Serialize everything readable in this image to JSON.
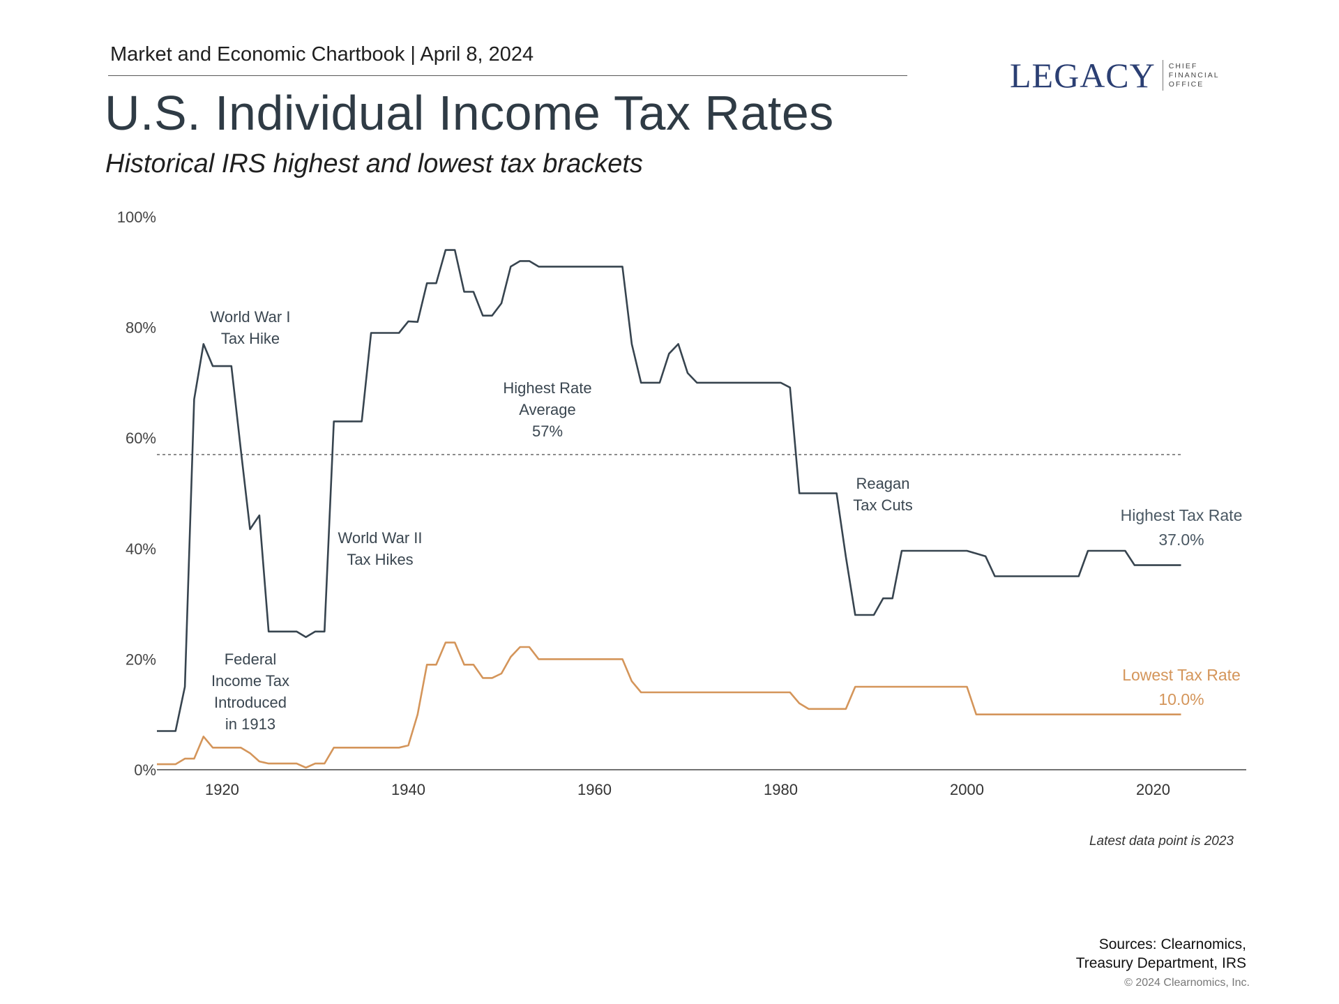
{
  "header": {
    "meta": "Market and Economic Chartbook | April 8, 2024",
    "title": "U.S. Individual Income Tax Rates",
    "subtitle": "Historical IRS highest and lowest tax brackets"
  },
  "logo": {
    "word": "LEGACY",
    "sub": [
      "CHIEF",
      "FINANCIAL",
      "OFFICE"
    ],
    "color": "#2b3f73"
  },
  "chart_data": {
    "type": "line",
    "title": "",
    "xlabel": "",
    "ylabel": "",
    "xlim": [
      1913,
      2030
    ],
    "ylim": [
      0,
      100
    ],
    "x_ticks": [
      1920,
      1940,
      1960,
      1980,
      2000,
      2020
    ],
    "y_ticks": [
      0,
      20,
      40,
      60,
      80,
      100
    ],
    "y_tick_labels": [
      "0%",
      "20%",
      "40%",
      "60%",
      "80%",
      "100%"
    ],
    "grid": false,
    "x": [
      1913,
      1914,
      1915,
      1916,
      1917,
      1918,
      1919,
      1920,
      1921,
      1922,
      1923,
      1924,
      1925,
      1926,
      1927,
      1928,
      1929,
      1930,
      1931,
      1932,
      1933,
      1934,
      1935,
      1936,
      1937,
      1938,
      1939,
      1940,
      1941,
      1942,
      1943,
      1944,
      1945,
      1946,
      1947,
      1948,
      1949,
      1950,
      1951,
      1952,
      1953,
      1954,
      1955,
      1956,
      1957,
      1958,
      1959,
      1960,
      1961,
      1962,
      1963,
      1964,
      1965,
      1966,
      1967,
      1968,
      1969,
      1970,
      1971,
      1972,
      1973,
      1974,
      1975,
      1976,
      1977,
      1978,
      1979,
      1980,
      1981,
      1982,
      1983,
      1984,
      1985,
      1986,
      1987,
      1988,
      1989,
      1990,
      1991,
      1992,
      1993,
      1994,
      1995,
      1996,
      1997,
      1998,
      1999,
      2000,
      2001,
      2002,
      2003,
      2004,
      2005,
      2006,
      2007,
      2008,
      2009,
      2010,
      2011,
      2012,
      2013,
      2014,
      2015,
      2016,
      2017,
      2018,
      2019,
      2020,
      2021,
      2022,
      2023
    ],
    "series": [
      {
        "name": "Highest Tax Rate",
        "color": "#37444f",
        "values": [
          7,
          7,
          7,
          15,
          67,
          77,
          73,
          73,
          73,
          58,
          43.5,
          46,
          25,
          25,
          25,
          25,
          24,
          25,
          25,
          63,
          63,
          63,
          63,
          79,
          79,
          79,
          79,
          81.1,
          81,
          88,
          88,
          94,
          94,
          86.45,
          86.45,
          82.13,
          82.13,
          84.36,
          91,
          92,
          92,
          91,
          91,
          91,
          91,
          91,
          91,
          91,
          91,
          91,
          91,
          77,
          70,
          70,
          70,
          75.25,
          77,
          71.75,
          70,
          70,
          70,
          70,
          70,
          70,
          70,
          70,
          70,
          70,
          69.13,
          50,
          50,
          50,
          50,
          50,
          38.5,
          28,
          28,
          28,
          31,
          31,
          39.6,
          39.6,
          39.6,
          39.6,
          39.6,
          39.6,
          39.6,
          39.6,
          39.1,
          38.6,
          35,
          35,
          35,
          35,
          35,
          35,
          35,
          35,
          35,
          35,
          39.6,
          39.6,
          39.6,
          39.6,
          39.6,
          37,
          37,
          37,
          37,
          37,
          37
        ]
      },
      {
        "name": "Lowest Tax Rate",
        "color": "#d4955a",
        "values": [
          1,
          1,
          1,
          2,
          2,
          6,
          4,
          4,
          4,
          4,
          3,
          1.5,
          1.125,
          1.125,
          1.125,
          1.125,
          0.375,
          1.125,
          1.125,
          4,
          4,
          4,
          4,
          4,
          4,
          4,
          4,
          4.4,
          10,
          19,
          19,
          23,
          23,
          19,
          19,
          16.6,
          16.6,
          17.4,
          20.4,
          22.2,
          22.2,
          20,
          20,
          20,
          20,
          20,
          20,
          20,
          20,
          20,
          20,
          16,
          14,
          14,
          14,
          14,
          14,
          14,
          14,
          14,
          14,
          14,
          14,
          14,
          14,
          14,
          14,
          14,
          14,
          12,
          11,
          11,
          11,
          11,
          11,
          15,
          15,
          15,
          15,
          15,
          15,
          15,
          15,
          15,
          15,
          15,
          15,
          15,
          10,
          10,
          10,
          10,
          10,
          10,
          10,
          10,
          10,
          10,
          10,
          10,
          10,
          10,
          10,
          10,
          10,
          10,
          10,
          10,
          10,
          10,
          10
        ]
      }
    ],
    "reference_line": {
      "value": 57,
      "style": "dashed"
    },
    "annotations": {
      "wwi": [
        "World War I",
        "Tax Hike"
      ],
      "average": [
        "Highest Rate",
        "Average",
        "57%"
      ],
      "wwii": [
        "World War II",
        "Tax Hikes"
      ],
      "federal": [
        "Federal",
        "Income Tax",
        "Introduced",
        "in 1913"
      ],
      "reagan": [
        "Reagan",
        "Tax Cuts"
      ],
      "highest_label": [
        "Highest Tax Rate",
        "37.0%"
      ],
      "lowest_label": [
        "Lowest Tax Rate",
        "10.0%"
      ]
    }
  },
  "footer": {
    "footnote": "Latest data point is 2023",
    "sources": [
      "Sources: Clearnomics,",
      "Treasury Department, IRS"
    ],
    "copyright": "© 2024 Clearnomics, Inc."
  }
}
